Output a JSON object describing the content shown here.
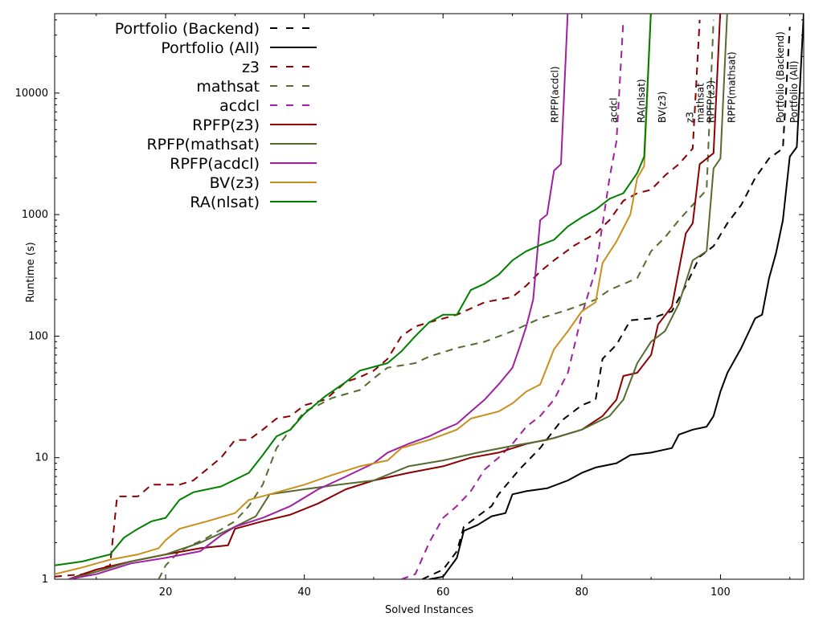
{
  "chart_data": {
    "type": "line",
    "title": "",
    "xlabel": "Solved Instances",
    "ylabel": "Runtime (s)",
    "xlim": [
      4,
      112
    ],
    "ylim": [
      1,
      45000
    ],
    "yscale": "log",
    "x_ticks": [
      20,
      40,
      60,
      80,
      100
    ],
    "x_tick_labels": [
      "20",
      "40",
      "60",
      "80",
      "100"
    ],
    "y_ticks": [
      1,
      10,
      100,
      1000,
      10000
    ],
    "y_tick_labels": [
      "1",
      "10",
      "100",
      "1000",
      "10000"
    ],
    "grid": false,
    "legend_position": "top-left",
    "series": [
      {
        "name": "Portfolio (Backend)",
        "end_label": "Portfolio (Backend)",
        "color": "#000000",
        "dashed": true,
        "points": [
          [
            57,
            1.0
          ],
          [
            60,
            1.2
          ],
          [
            62,
            1.7
          ],
          [
            63,
            2.7
          ],
          [
            65,
            3.3
          ],
          [
            67,
            4.0
          ],
          [
            68,
            5.0
          ],
          [
            71,
            8.0
          ],
          [
            74,
            12
          ],
          [
            77,
            20
          ],
          [
            80,
            27
          ],
          [
            82,
            30
          ],
          [
            83,
            65
          ],
          [
            85,
            85
          ],
          [
            87,
            135
          ],
          [
            90,
            140
          ],
          [
            93,
            160
          ],
          [
            95,
            260
          ],
          [
            97,
            450
          ],
          [
            99,
            550
          ],
          [
            101,
            850
          ],
          [
            103,
            1200
          ],
          [
            105,
            2000
          ],
          [
            107,
            2900
          ],
          [
            109,
            3500
          ],
          [
            110,
            35000
          ]
        ]
      },
      {
        "name": "Portfolio (All)",
        "end_label": "Portfolio (All)",
        "color": "#000000",
        "dashed": false,
        "points": [
          [
            58,
            1.0
          ],
          [
            60,
            1.05
          ],
          [
            62,
            1.5
          ],
          [
            63,
            2.5
          ],
          [
            65,
            2.8
          ],
          [
            67,
            3.3
          ],
          [
            69,
            3.5
          ],
          [
            70,
            5.0
          ],
          [
            72,
            5.3
          ],
          [
            75,
            5.6
          ],
          [
            78,
            6.5
          ],
          [
            80,
            7.5
          ],
          [
            82,
            8.3
          ],
          [
            85,
            9.0
          ],
          [
            87,
            10.5
          ],
          [
            90,
            11
          ],
          [
            93,
            12
          ],
          [
            94,
            15.5
          ],
          [
            96,
            17
          ],
          [
            98,
            18
          ],
          [
            99,
            22
          ],
          [
            100,
            35
          ],
          [
            101,
            50
          ],
          [
            103,
            80
          ],
          [
            105,
            140
          ],
          [
            106,
            150
          ],
          [
            107,
            300
          ],
          [
            108,
            480
          ],
          [
            109,
            900
          ],
          [
            110,
            3000
          ],
          [
            111,
            3600
          ],
          [
            112,
            45000
          ]
        ]
      },
      {
        "name": "z3",
        "end_label": "z3",
        "color": "#8b0000",
        "dashed": true,
        "points": [
          [
            4,
            1.05
          ],
          [
            8,
            1.1
          ],
          [
            12,
            1.3
          ],
          [
            13,
            4.8
          ],
          [
            16,
            4.8
          ],
          [
            18,
            6
          ],
          [
            22,
            6
          ],
          [
            24,
            6.5
          ],
          [
            28,
            10
          ],
          [
            30,
            14
          ],
          [
            32,
            14
          ],
          [
            34,
            17
          ],
          [
            36,
            21
          ],
          [
            38,
            22
          ],
          [
            40,
            27
          ],
          [
            43,
            30
          ],
          [
            46,
            42
          ],
          [
            48,
            46
          ],
          [
            50,
            52
          ],
          [
            52,
            65
          ],
          [
            54,
            100
          ],
          [
            56,
            120
          ],
          [
            58,
            130
          ],
          [
            62,
            150
          ],
          [
            66,
            190
          ],
          [
            70,
            210
          ],
          [
            72,
            260
          ],
          [
            74,
            340
          ],
          [
            76,
            420
          ],
          [
            79,
            560
          ],
          [
            82,
            700
          ],
          [
            84,
            900
          ],
          [
            86,
            1300
          ],
          [
            88,
            1500
          ],
          [
            90,
            1600
          ],
          [
            92,
            2100
          ],
          [
            94,
            2600
          ],
          [
            96,
            3500
          ],
          [
            97,
            40000
          ]
        ]
      },
      {
        "name": "mathsat",
        "end_label": "mathsat",
        "color": "#556b2f",
        "dashed": true,
        "points": [
          [
            19,
            1.0
          ],
          [
            20,
            1.3
          ],
          [
            22,
            1.7
          ],
          [
            26,
            2.2
          ],
          [
            30,
            3.0
          ],
          [
            32,
            4.0
          ],
          [
            34,
            6.0
          ],
          [
            36,
            12
          ],
          [
            38,
            17
          ],
          [
            40,
            24
          ],
          [
            42,
            27
          ],
          [
            44,
            31
          ],
          [
            48,
            36
          ],
          [
            50,
            45
          ],
          [
            52,
            55
          ],
          [
            56,
            60
          ],
          [
            58,
            68
          ],
          [
            62,
            80
          ],
          [
            66,
            90
          ],
          [
            70,
            110
          ],
          [
            74,
            140
          ],
          [
            78,
            165
          ],
          [
            82,
            200
          ],
          [
            84,
            240
          ],
          [
            88,
            300
          ],
          [
            90,
            500
          ],
          [
            92,
            650
          ],
          [
            94,
            900
          ],
          [
            96,
            1200
          ],
          [
            98,
            1600
          ],
          [
            99,
            40000
          ]
        ]
      },
      {
        "name": "acdcl",
        "end_label": "acdcl",
        "color": "#a020a0",
        "dashed": true,
        "points": [
          [
            54,
            1.0
          ],
          [
            56,
            1.1
          ],
          [
            58,
            2.0
          ],
          [
            60,
            3.2
          ],
          [
            62,
            4.0
          ],
          [
            64,
            5.3
          ],
          [
            66,
            8.0
          ],
          [
            68,
            10
          ],
          [
            70,
            13
          ],
          [
            72,
            18
          ],
          [
            74,
            22
          ],
          [
            76,
            30
          ],
          [
            78,
            50
          ],
          [
            80,
            150
          ],
          [
            82,
            350
          ],
          [
            84,
            2000
          ],
          [
            85,
            4000
          ],
          [
            86,
            40000
          ]
        ]
      },
      {
        "name": "RPFP(z3)",
        "end_label": "RPFP(z3)",
        "color": "#8b0000",
        "dashed": false,
        "points": [
          [
            6,
            1.0
          ],
          [
            10,
            1.2
          ],
          [
            15,
            1.4
          ],
          [
            20,
            1.6
          ],
          [
            25,
            1.8
          ],
          [
            29,
            1.9
          ],
          [
            30,
            2.6
          ],
          [
            34,
            3.0
          ],
          [
            38,
            3.4
          ],
          [
            42,
            4.2
          ],
          [
            46,
            5.5
          ],
          [
            50,
            6.5
          ],
          [
            55,
            7.5
          ],
          [
            60,
            8.5
          ],
          [
            64,
            10
          ],
          [
            68,
            11
          ],
          [
            72,
            13
          ],
          [
            76,
            14.5
          ],
          [
            80,
            17
          ],
          [
            83,
            22
          ],
          [
            85,
            30
          ],
          [
            86,
            47
          ],
          [
            88,
            50
          ],
          [
            90,
            70
          ],
          [
            91,
            125
          ],
          [
            93,
            175
          ],
          [
            95,
            700
          ],
          [
            96,
            850
          ],
          [
            97,
            2600
          ],
          [
            99,
            3200
          ],
          [
            100,
            50000
          ]
        ]
      },
      {
        "name": "RPFP(mathsat)",
        "end_label": "RPFP(mathsat)",
        "color": "#556b2f",
        "dashed": false,
        "points": [
          [
            6,
            1.0
          ],
          [
            10,
            1.15
          ],
          [
            15,
            1.4
          ],
          [
            20,
            1.6
          ],
          [
            25,
            2.0
          ],
          [
            30,
            2.7
          ],
          [
            33,
            3.3
          ],
          [
            35,
            5.0
          ],
          [
            40,
            5.5
          ],
          [
            45,
            6.0
          ],
          [
            50,
            6.5
          ],
          [
            55,
            8.5
          ],
          [
            60,
            9.5
          ],
          [
            65,
            11
          ],
          [
            70,
            12.5
          ],
          [
            75,
            14
          ],
          [
            80,
            17
          ],
          [
            84,
            22
          ],
          [
            86,
            30
          ],
          [
            88,
            60
          ],
          [
            90,
            90
          ],
          [
            92,
            110
          ],
          [
            94,
            185
          ],
          [
            96,
            420
          ],
          [
            98,
            500
          ],
          [
            99,
            2400
          ],
          [
            100,
            2900
          ],
          [
            101,
            50000
          ]
        ]
      },
      {
        "name": "RPFP(acdcl)",
        "end_label": "RPFP(acdcl)",
        "color": "#a020a0",
        "dashed": false,
        "points": [
          [
            6,
            1.0
          ],
          [
            10,
            1.1
          ],
          [
            15,
            1.35
          ],
          [
            20,
            1.5
          ],
          [
            25,
            1.7
          ],
          [
            28,
            2.3
          ],
          [
            30,
            2.7
          ],
          [
            34,
            3.2
          ],
          [
            38,
            4.0
          ],
          [
            42,
            5.5
          ],
          [
            46,
            7.0
          ],
          [
            50,
            9.0
          ],
          [
            52,
            11
          ],
          [
            55,
            13
          ],
          [
            58,
            15
          ],
          [
            60,
            17
          ],
          [
            62,
            19
          ],
          [
            64,
            24
          ],
          [
            66,
            30
          ],
          [
            68,
            40
          ],
          [
            70,
            55
          ],
          [
            71,
            80
          ],
          [
            72,
            120
          ],
          [
            73,
            200
          ],
          [
            74,
            900
          ],
          [
            75,
            1000
          ],
          [
            76,
            2300
          ],
          [
            77,
            2600
          ],
          [
            78,
            50000
          ]
        ]
      },
      {
        "name": "BV(z3)",
        "end_label": "BV(z3)",
        "color": "#c8901c",
        "dashed": false,
        "points": [
          [
            4,
            1.1
          ],
          [
            8,
            1.25
          ],
          [
            12,
            1.45
          ],
          [
            16,
            1.6
          ],
          [
            19,
            1.8
          ],
          [
            20,
            2.1
          ],
          [
            22,
            2.6
          ],
          [
            26,
            3.0
          ],
          [
            30,
            3.5
          ],
          [
            32,
            4.5
          ],
          [
            35,
            5.0
          ],
          [
            40,
            6.0
          ],
          [
            44,
            7.2
          ],
          [
            48,
            8.5
          ],
          [
            52,
            9.5
          ],
          [
            54,
            12
          ],
          [
            58,
            14
          ],
          [
            62,
            17
          ],
          [
            64,
            21
          ],
          [
            68,
            24
          ],
          [
            70,
            28
          ],
          [
            72,
            35
          ],
          [
            74,
            40
          ],
          [
            76,
            78
          ],
          [
            78,
            110
          ],
          [
            80,
            160
          ],
          [
            82,
            190
          ],
          [
            83,
            400
          ],
          [
            85,
            600
          ],
          [
            87,
            1000
          ],
          [
            88,
            2000
          ],
          [
            89,
            2500
          ],
          [
            90,
            50000
          ]
        ]
      },
      {
        "name": "RA(nlsat)",
        "end_label": "RA(nlsat)",
        "color": "#008000",
        "dashed": false,
        "points": [
          [
            4,
            1.3
          ],
          [
            8,
            1.4
          ],
          [
            12,
            1.6
          ],
          [
            14,
            2.2
          ],
          [
            16,
            2.6
          ],
          [
            18,
            3.0
          ],
          [
            20,
            3.2
          ],
          [
            22,
            4.5
          ],
          [
            24,
            5.2
          ],
          [
            28,
            5.8
          ],
          [
            32,
            7.5
          ],
          [
            34,
            10.5
          ],
          [
            36,
            15
          ],
          [
            38,
            17
          ],
          [
            40,
            23
          ],
          [
            43,
            32
          ],
          [
            46,
            42
          ],
          [
            48,
            52
          ],
          [
            52,
            60
          ],
          [
            54,
            75
          ],
          [
            56,
            100
          ],
          [
            58,
            130
          ],
          [
            60,
            150
          ],
          [
            62,
            150
          ],
          [
            64,
            240
          ],
          [
            66,
            270
          ],
          [
            68,
            320
          ],
          [
            70,
            420
          ],
          [
            72,
            500
          ],
          [
            74,
            560
          ],
          [
            76,
            620
          ],
          [
            78,
            800
          ],
          [
            80,
            950
          ],
          [
            82,
            1100
          ],
          [
            84,
            1350
          ],
          [
            86,
            1500
          ],
          [
            88,
            2200
          ],
          [
            89,
            3000
          ],
          [
            90,
            50000
          ]
        ]
      }
    ]
  }
}
